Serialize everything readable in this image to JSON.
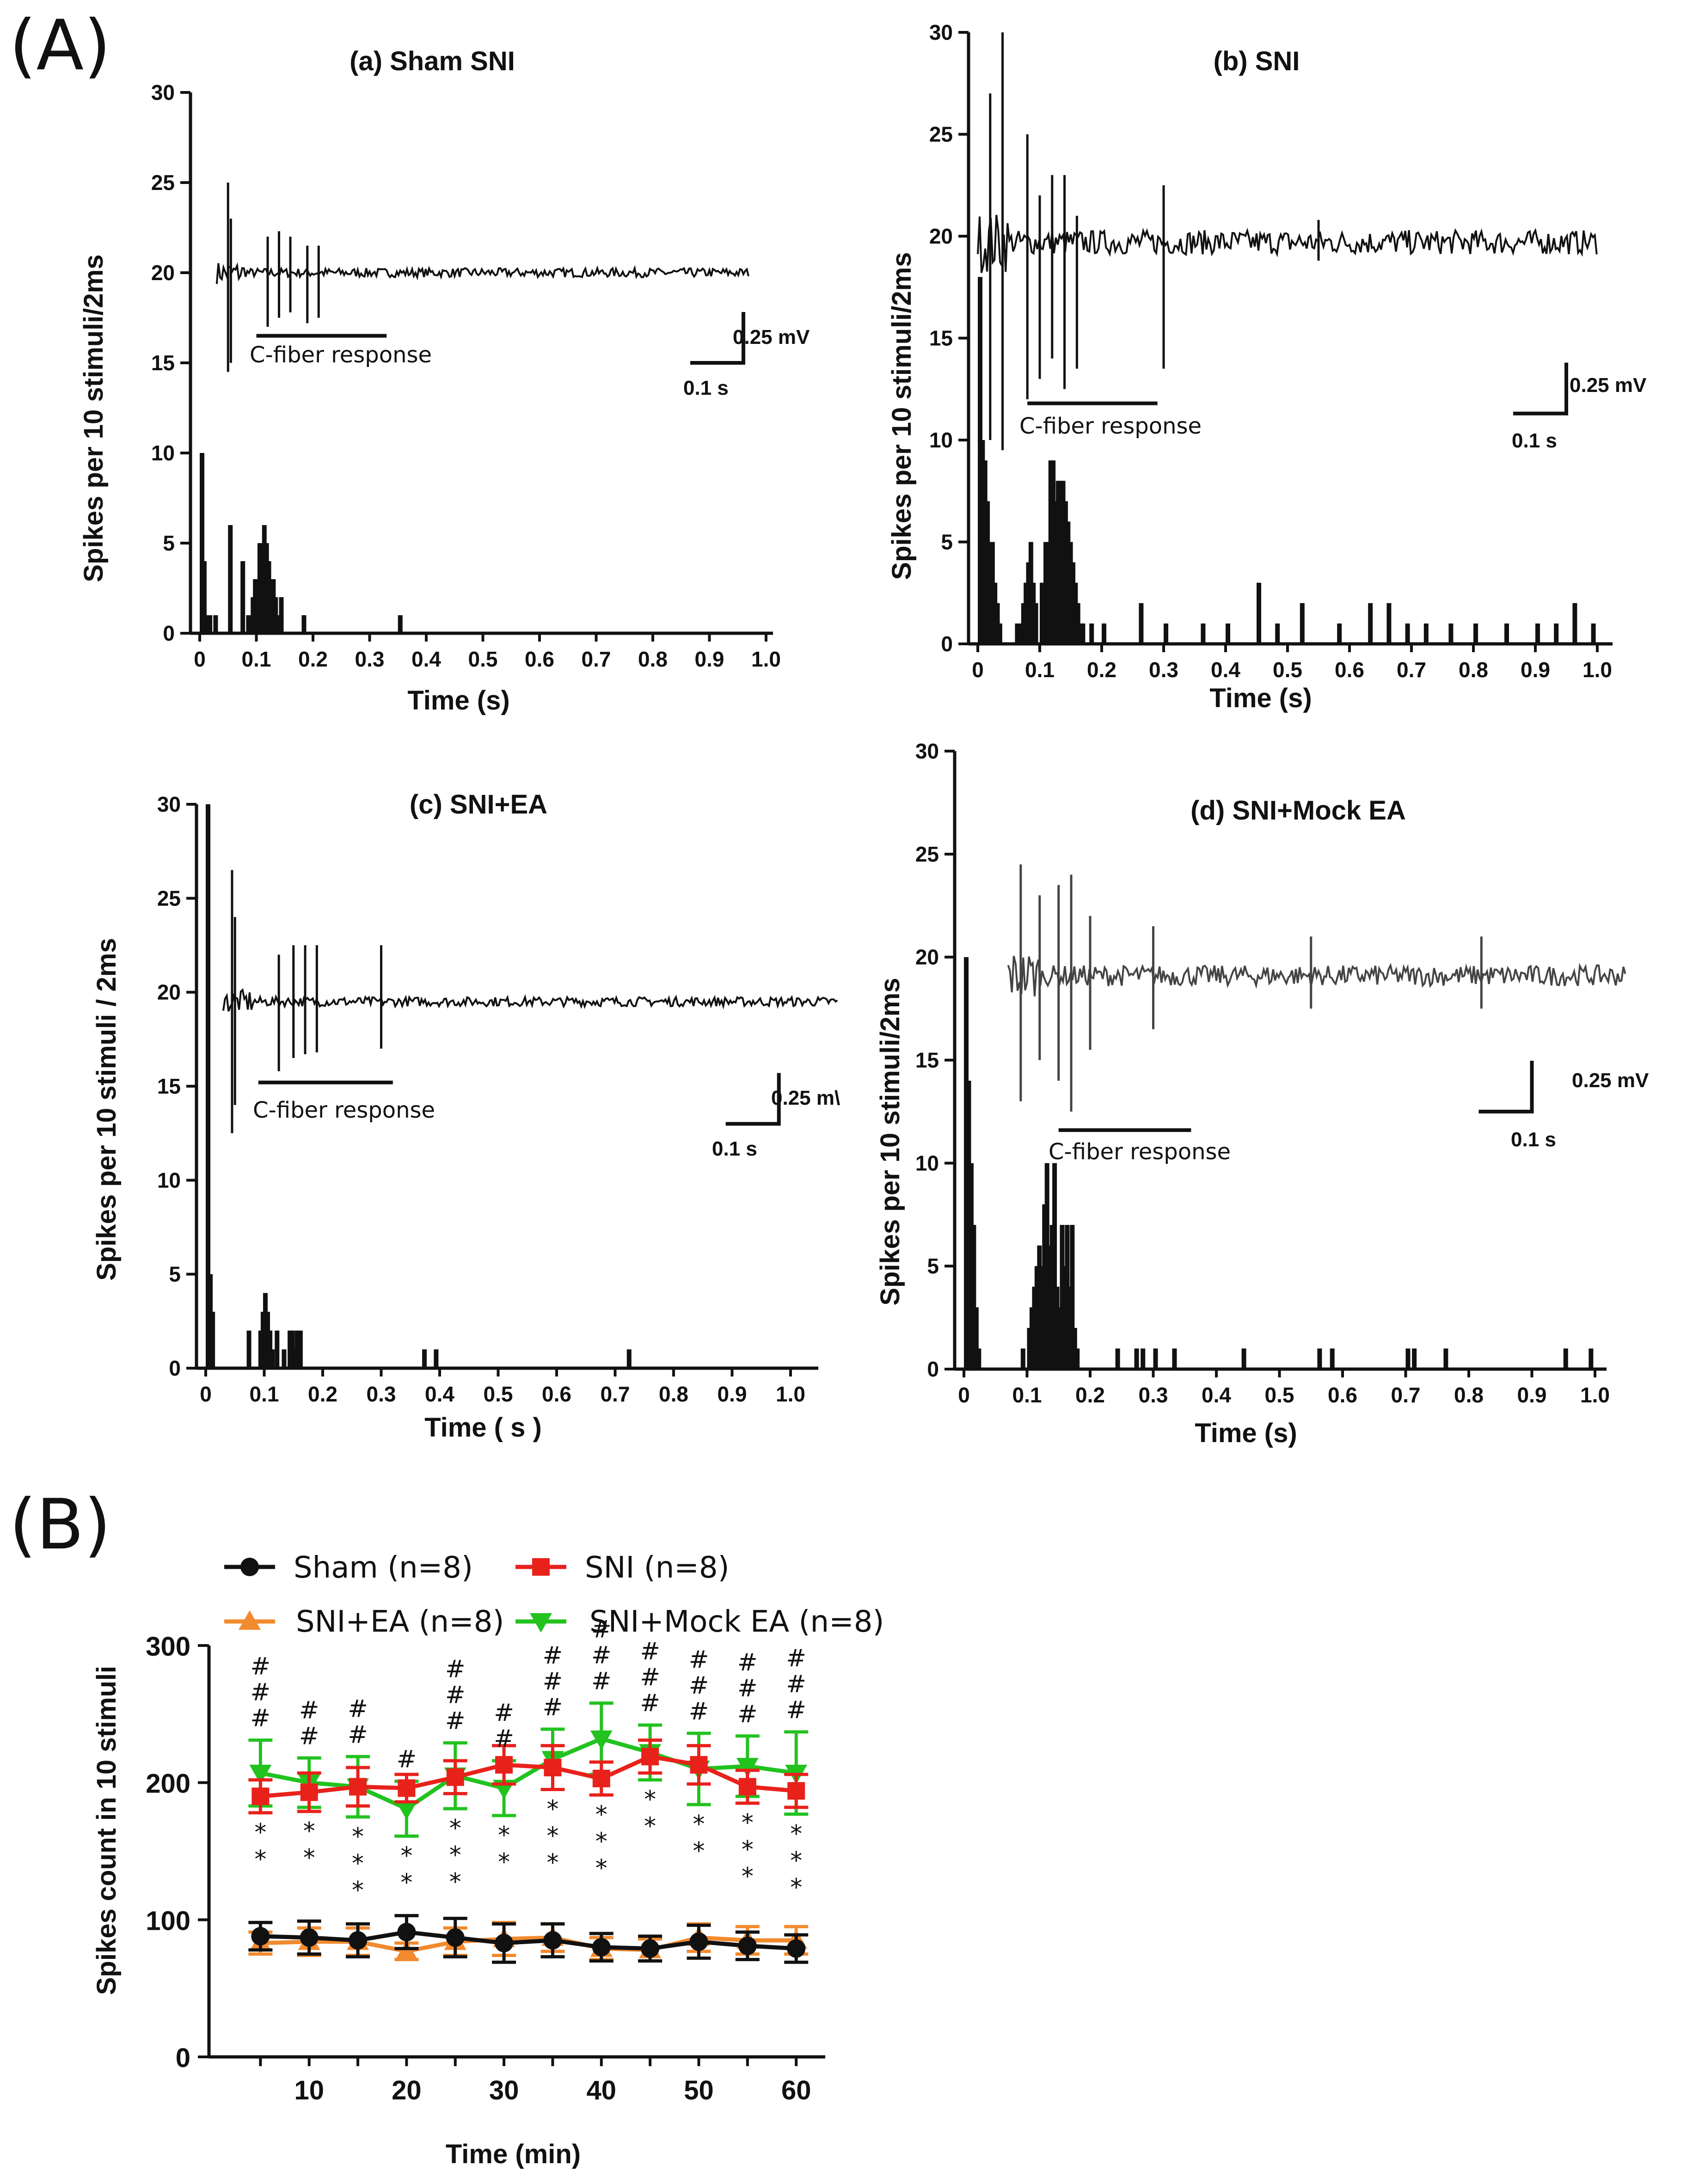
{
  "labels": {
    "panel_a": "(A)",
    "panel_b": "(B)"
  },
  "colors": {
    "black": "#111111",
    "red": "#e8221b",
    "orange": "#f28a2e",
    "green": "#22c21f"
  },
  "chart_data": [
    {
      "id": "a",
      "type": "bar",
      "title": "(a) Sham SNI",
      "xlabel": "Time (s)",
      "ylabel": "Spikes per 10 stimuli/2ms",
      "xlim": [
        0,
        1.0
      ],
      "ylim": [
        0,
        30
      ],
      "xticks": [
        "0",
        "0.1",
        "0.2",
        "0.3",
        "0.4",
        "0.5",
        "0.6",
        "0.7",
        "0.8",
        "0.9",
        "1.0"
      ],
      "yticks": [
        "0",
        "5",
        "10",
        "15",
        "20",
        "25",
        "30"
      ],
      "bins": [
        [
          0,
          10
        ],
        [
          0.004,
          4
        ],
        [
          0.008,
          1
        ],
        [
          0.014,
          1
        ],
        [
          0.024,
          1
        ],
        [
          0.05,
          6
        ],
        [
          0.072,
          4
        ],
        [
          0.082,
          1
        ],
        [
          0.09,
          2
        ],
        [
          0.094,
          3
        ],
        [
          0.098,
          3
        ],
        [
          0.102,
          5
        ],
        [
          0.106,
          3
        ],
        [
          0.11,
          6
        ],
        [
          0.114,
          5
        ],
        [
          0.118,
          4
        ],
        [
          0.122,
          3
        ],
        [
          0.126,
          3
        ],
        [
          0.13,
          2
        ],
        [
          0.134,
          1
        ],
        [
          0.14,
          2
        ],
        [
          0.18,
          1
        ],
        [
          0.35,
          1
        ]
      ],
      "trace": {
        "baseline": 20,
        "start": 0.03,
        "end": 0.97,
        "spikes": [
          [
            0.05,
            25,
            14.5
          ],
          [
            0.055,
            23,
            15
          ],
          [
            0.12,
            22,
            17
          ],
          [
            0.14,
            22.3,
            17.5
          ],
          [
            0.16,
            22,
            17.8
          ],
          [
            0.19,
            21.5,
            17.2
          ],
          [
            0.21,
            21.5,
            17.5
          ]
        ],
        "noise": 0.25
      },
      "cfiber": {
        "label": "C-fiber response",
        "x0": 0.1,
        "x1": 0.33,
        "y": 16.5
      },
      "scale": {
        "mv": "0.25 mV",
        "s": "0.1 s",
        "x": 0.96,
        "y": 15
      }
    },
    {
      "id": "b",
      "type": "bar",
      "title": "(b) SNI",
      "xlabel": "Time (s)",
      "ylabel": "Spikes per 10 stimuli/2ms",
      "xlim": [
        0,
        1.0
      ],
      "ylim": [
        0,
        30
      ],
      "xticks": [
        "0",
        "0.1",
        "0.2",
        "0.3",
        "0.4",
        "0.5",
        "0.6",
        "0.7",
        "0.8",
        "0.9",
        "1.0"
      ],
      "yticks": [
        "0",
        "5",
        "10",
        "15",
        "20",
        "25",
        "30"
      ],
      "bins": [
        [
          0,
          18
        ],
        [
          0.004,
          10
        ],
        [
          0.008,
          9
        ],
        [
          0.012,
          7
        ],
        [
          0.016,
          5
        ],
        [
          0.02,
          5
        ],
        [
          0.024,
          3
        ],
        [
          0.028,
          2
        ],
        [
          0.032,
          1
        ],
        [
          0.06,
          1
        ],
        [
          0.066,
          1
        ],
        [
          0.07,
          2
        ],
        [
          0.074,
          3
        ],
        [
          0.078,
          4
        ],
        [
          0.082,
          5
        ],
        [
          0.086,
          3
        ],
        [
          0.09,
          2
        ],
        [
          0.1,
          3
        ],
        [
          0.106,
          5
        ],
        [
          0.11,
          5
        ],
        [
          0.114,
          9
        ],
        [
          0.118,
          9
        ],
        [
          0.122,
          7
        ],
        [
          0.126,
          8
        ],
        [
          0.13,
          8
        ],
        [
          0.134,
          8
        ],
        [
          0.138,
          7
        ],
        [
          0.142,
          6
        ],
        [
          0.146,
          5
        ],
        [
          0.15,
          4
        ],
        [
          0.154,
          3
        ],
        [
          0.158,
          2
        ],
        [
          0.162,
          1
        ],
        [
          0.166,
          1
        ],
        [
          0.18,
          1
        ],
        [
          0.2,
          1
        ],
        [
          0.26,
          2
        ],
        [
          0.3,
          1
        ],
        [
          0.36,
          1
        ],
        [
          0.4,
          1
        ],
        [
          0.45,
          3
        ],
        [
          0.48,
          1
        ],
        [
          0.52,
          2
        ],
        [
          0.58,
          1
        ],
        [
          0.63,
          2
        ],
        [
          0.66,
          2
        ],
        [
          0.69,
          1
        ],
        [
          0.72,
          1
        ],
        [
          0.76,
          1
        ],
        [
          0.8,
          1
        ],
        [
          0.85,
          1
        ],
        [
          0.9,
          1
        ],
        [
          0.93,
          1
        ],
        [
          0.96,
          2
        ],
        [
          0.99,
          1
        ]
      ],
      "trace": {
        "baseline": 19.7,
        "start": 0.0,
        "end": 1.0,
        "spikes": [
          [
            0.02,
            27,
            10
          ],
          [
            0.04,
            30,
            9.5
          ],
          [
            0.08,
            25,
            12
          ],
          [
            0.1,
            22,
            13
          ],
          [
            0.12,
            23,
            14
          ],
          [
            0.14,
            23,
            12.5
          ],
          [
            0.16,
            21,
            13.5
          ],
          [
            0.3,
            22.5,
            13.5
          ],
          [
            0.55,
            20.8,
            18.8
          ]
        ],
        "noise": 0.6
      },
      "cfiber": {
        "label": "C-fiber response",
        "x0": 0.08,
        "x1": 0.29,
        "y": 11.8
      },
      "scale": {
        "mv": "0.25 mV",
        "s": "0.1 s",
        "x": 0.95,
        "y": 11.3
      }
    },
    {
      "id": "c",
      "type": "bar",
      "title": "(c) SNI+EA",
      "xlabel": "Time ( s )",
      "ylabel": "Spikes per 10 stimuli / 2ms",
      "xlim": [
        0,
        1.0
      ],
      "ylim": [
        0,
        30
      ],
      "xticks": [
        "0",
        "0.1",
        "0.2",
        "0.3",
        "0.4",
        "0.5",
        "0.6",
        "0.7",
        "0.8",
        "0.9",
        "1.0"
      ],
      "yticks": [
        "0",
        "5",
        "10",
        "15",
        "20",
        "25",
        "30"
      ],
      "bins": [
        [
          0,
          30
        ],
        [
          0.004,
          5
        ],
        [
          0.008,
          3
        ],
        [
          0.07,
          2
        ],
        [
          0.09,
          2
        ],
        [
          0.094,
          3
        ],
        [
          0.098,
          4
        ],
        [
          0.102,
          3
        ],
        [
          0.106,
          2
        ],
        [
          0.11,
          1
        ],
        [
          0.118,
          2
        ],
        [
          0.13,
          1
        ],
        [
          0.14,
          2
        ],
        [
          0.144,
          2
        ],
        [
          0.148,
          1
        ],
        [
          0.152,
          2
        ],
        [
          0.158,
          2
        ],
        [
          0.37,
          1
        ],
        [
          0.39,
          1
        ],
        [
          0.72,
          1
        ]
      ],
      "trace": {
        "baseline": 19.5,
        "start": 0.03,
        "end": 1.08,
        "spikes": [
          [
            0.045,
            26.5,
            12.5
          ],
          [
            0.05,
            24,
            14
          ],
          [
            0.125,
            22,
            15.8
          ],
          [
            0.15,
            22.5,
            16.5
          ],
          [
            0.17,
            22.5,
            16.7
          ],
          [
            0.19,
            22.5,
            16.8
          ],
          [
            0.3,
            22.5,
            17
          ]
        ],
        "noise": 0.25
      },
      "cfiber": {
        "label": "C-fiber response",
        "x0": 0.09,
        "x1": 0.32,
        "y": 15.2
      },
      "scale": {
        "mv": "0.25 m\\",
        "s": "0.1 s",
        "x": 0.98,
        "y": 13
      }
    },
    {
      "id": "d",
      "type": "bar",
      "title": "(d) SNI+Mock EA",
      "xlabel": "Time (s)",
      "ylabel": "Spikes per 10 stimuli/2ms",
      "xlim": [
        0,
        1.0
      ],
      "ylim": [
        0,
        30
      ],
      "xticks": [
        "0",
        "0.1",
        "0.2",
        "0.3",
        "0.4",
        "0.5",
        "0.6",
        "0.7",
        "0.8",
        "0.9",
        "1.0"
      ],
      "yticks": [
        "0",
        "5",
        "10",
        "15",
        "20",
        "25",
        "30"
      ],
      "bins": [
        [
          0,
          20
        ],
        [
          0.004,
          14
        ],
        [
          0.008,
          10
        ],
        [
          0.012,
          7
        ],
        [
          0.016,
          3
        ],
        [
          0.02,
          1
        ],
        [
          0.09,
          1
        ],
        [
          0.1,
          2
        ],
        [
          0.104,
          3
        ],
        [
          0.108,
          4
        ],
        [
          0.112,
          5
        ],
        [
          0.116,
          6
        ],
        [
          0.12,
          5
        ],
        [
          0.124,
          8
        ],
        [
          0.128,
          10
        ],
        [
          0.132,
          6
        ],
        [
          0.136,
          7
        ],
        [
          0.14,
          10
        ],
        [
          0.144,
          4
        ],
        [
          0.148,
          3
        ],
        [
          0.152,
          7
        ],
        [
          0.156,
          5
        ],
        [
          0.16,
          7
        ],
        [
          0.164,
          4
        ],
        [
          0.168,
          7
        ],
        [
          0.172,
          2
        ],
        [
          0.176,
          1
        ],
        [
          0.24,
          1
        ],
        [
          0.27,
          1
        ],
        [
          0.28,
          1
        ],
        [
          0.3,
          1
        ],
        [
          0.33,
          1
        ],
        [
          0.44,
          1
        ],
        [
          0.56,
          1
        ],
        [
          0.58,
          1
        ],
        [
          0.7,
          1
        ],
        [
          0.71,
          1
        ],
        [
          0.76,
          1
        ],
        [
          0.95,
          1
        ],
        [
          0.99,
          1
        ]
      ],
      "trace": {
        "baseline": 19.1,
        "start": 0.07,
        "end": 1.05,
        "spikes": [
          [
            0.09,
            24.5,
            13
          ],
          [
            0.12,
            23,
            15
          ],
          [
            0.15,
            23.5,
            14
          ],
          [
            0.17,
            24,
            12.5
          ],
          [
            0.2,
            22,
            15.5
          ],
          [
            0.3,
            21.5,
            16.5
          ],
          [
            0.55,
            21,
            17.5
          ],
          [
            0.82,
            21,
            17.5
          ]
        ],
        "noise": 0.5
      },
      "cfiber": {
        "label": "C-fiber response",
        "x0": 0.15,
        "x1": 0.36,
        "y": 11.6
      },
      "scale": {
        "mv": "0.25 mV",
        "s": "0.1 s",
        "x": 0.9,
        "y": 12.5
      }
    },
    {
      "id": "B",
      "type": "line",
      "xlabel": "Time (min)",
      "ylabel": "Spikes count in 10 stimuli",
      "xlim": [
        0,
        62
      ],
      "ylim": [
        0,
        300
      ],
      "xticks": [
        "10",
        "20",
        "30",
        "40",
        "50",
        "60"
      ],
      "yticks": [
        "0",
        "100",
        "200",
        "300"
      ],
      "x": [
        5,
        10,
        15,
        20,
        25,
        30,
        35,
        40,
        45,
        50,
        55,
        60
      ],
      "legend": [
        "Sham (n=8)",
        "SNI (n=8)",
        "SNI+EA (n=8)",
        "SNI+Mock EA (n=8)"
      ],
      "series": [
        {
          "name": "Sham (n=8)",
          "color": "#111111",
          "marker": "circle",
          "values": [
            88,
            87,
            85,
            91,
            87,
            83,
            85,
            80,
            79,
            84,
            81,
            79
          ],
          "err": [
            10,
            12,
            12,
            12,
            14,
            14,
            12,
            10,
            9,
            12,
            10,
            10
          ]
        },
        {
          "name": "SNI (n=8)",
          "color": "#e8221b",
          "marker": "square",
          "values": [
            190,
            193,
            197,
            196,
            204,
            213,
            211,
            203,
            219,
            213,
            197,
            194
          ],
          "err": [
            12,
            14,
            14,
            10,
            12,
            14,
            16,
            12,
            12,
            14,
            12,
            12
          ]
        },
        {
          "name": "SNI+EA (n=8)",
          "color": "#f28a2e",
          "marker": "triangle-up",
          "values": [
            83,
            84,
            84,
            77,
            84,
            86,
            87,
            79,
            78,
            87,
            85,
            85
          ],
          "err": [
            8,
            10,
            10,
            6,
            10,
            12,
            10,
            8,
            8,
            10,
            10,
            10
          ]
        },
        {
          "name": "SNI+Mock EA (n=8)",
          "color": "#22c21f",
          "marker": "triangle-down",
          "values": [
            207,
            200,
            197,
            181,
            205,
            196,
            217,
            232,
            222,
            210,
            212,
            207
          ],
          "err": [
            24,
            18,
            22,
            20,
            24,
            20,
            22,
            26,
            20,
            26,
            22,
            30
          ]
        }
      ],
      "hash_marks": [
        "###",
        "##",
        "##",
        "#",
        "###",
        "##",
        "###",
        "###",
        "###",
        "###",
        "###",
        "###"
      ],
      "star_marks": [
        "**",
        "**",
        "***",
        "**",
        "***",
        "**",
        "***",
        "***",
        "**",
        "**",
        "***",
        "***"
      ]
    }
  ]
}
